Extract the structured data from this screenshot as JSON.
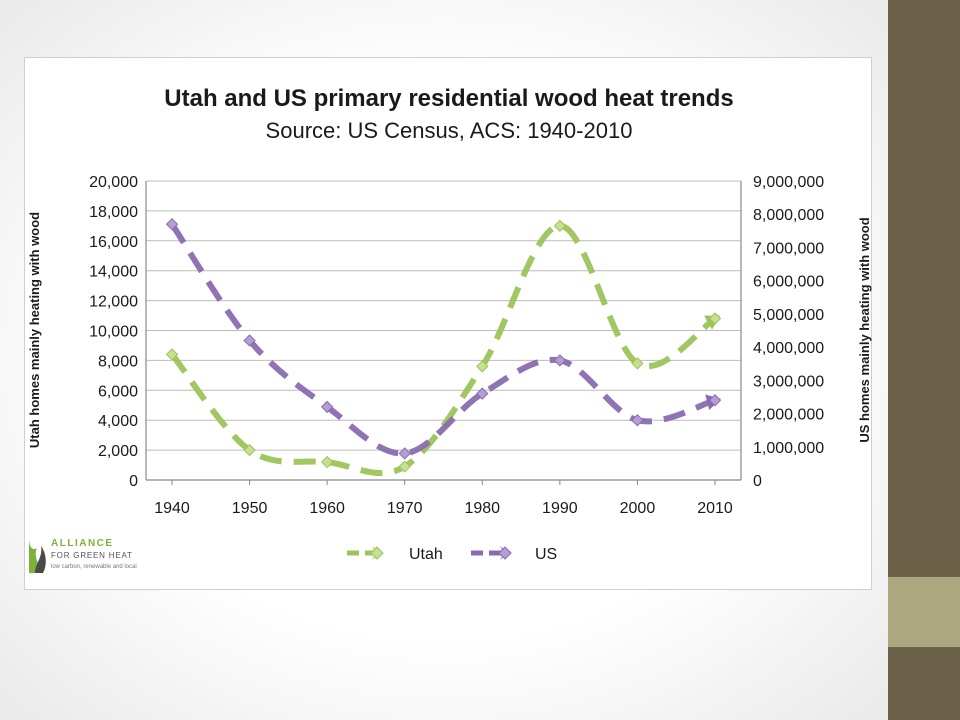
{
  "slide": {
    "accent_dark": "#6b6148",
    "accent_light": "#aca77f"
  },
  "logo": {
    "line1": "ALLIANCE",
    "line2": "FOR GREEN HEAT",
    "line3": "low carbon, renewable and local",
    "icon": "flame-leaf-icon"
  },
  "chart_data": {
    "type": "line",
    "title": "Utah and US primary residential wood heat trends",
    "subtitle": "Source: US Census, ACS: 1940-2010",
    "x": [
      "1940",
      "1950",
      "1960",
      "1970",
      "1980",
      "1990",
      "2000",
      "2010"
    ],
    "ylabel_left": "Utah homes mainly heating with wood",
    "ylabel_right": "US homes mainly heating with wood",
    "ylim_left": [
      0,
      20000
    ],
    "ylim_right": [
      0,
      9000000
    ],
    "yticks_left": [
      "0",
      "2,000",
      "4,000",
      "6,000",
      "8,000",
      "10,000",
      "12,000",
      "14,000",
      "16,000",
      "18,000",
      "20,000"
    ],
    "yticks_right": [
      "0",
      "1,000,000",
      "2,000,000",
      "3,000,000",
      "4,000,000",
      "5,000,000",
      "6,000,000",
      "7,000,000",
      "8,000,000",
      "9,000,000"
    ],
    "grid": true,
    "legend_position": "bottom",
    "series": [
      {
        "name": "Utah",
        "axis": "left",
        "color": "#9bc45a",
        "marker_color": "#c6e08f",
        "values": [
          8400,
          2000,
          1200,
          900,
          7600,
          17000,
          7800,
          10800
        ]
      },
      {
        "name": "US",
        "axis": "right",
        "color": "#8a6bb0",
        "marker_color": "#b39ed2",
        "values": [
          7700000,
          4200000,
          2200000,
          800000,
          2600000,
          3600000,
          1800000,
          2400000
        ]
      }
    ]
  }
}
